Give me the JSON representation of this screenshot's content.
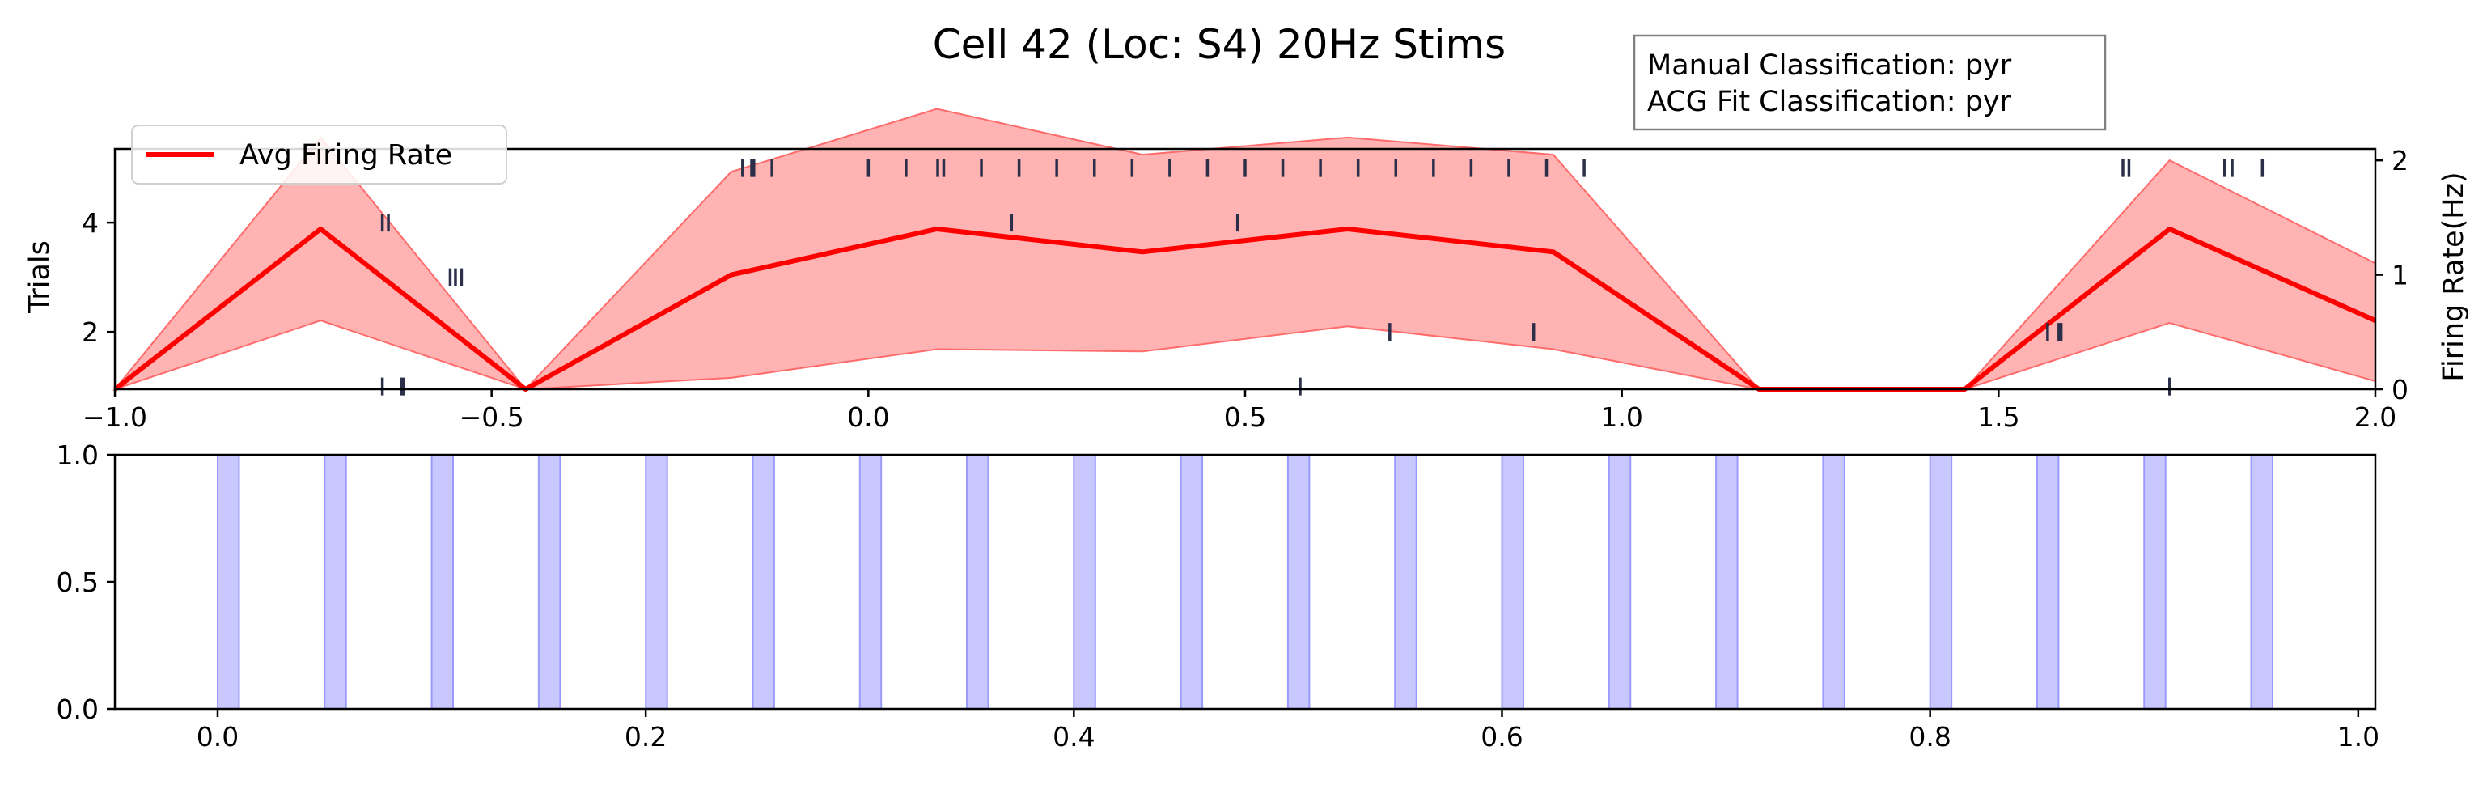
{
  "title": "Cell 42 (Loc: S4) 20Hz Stims",
  "classification_box": {
    "line1": "Manual Classification: pyr",
    "line2": "ACG Fit Classification: pyr"
  },
  "colors": {
    "rate_line": "#ff0000",
    "rate_band": "#ff9a9a",
    "spike_ticks": "#2c2f4a",
    "stim_band": "#c8c8ff",
    "stim_edge": "#9a9aff"
  },
  "chart_data": [
    {
      "type": "line",
      "panel": "top",
      "title": "Cell 42 (Loc: S4) 20Hz Stims",
      "xlim": [
        -1.0,
        2.0
      ],
      "xticks": [
        -1.0,
        -0.5,
        0.0,
        0.5,
        1.0,
        1.5,
        2.0
      ],
      "xtick_labels": [
        "−1.0",
        "−0.5",
        "0.0",
        "0.5",
        "1.0",
        "1.5",
        "2.0"
      ],
      "left_axis": {
        "label": "Trials",
        "ylim": [
          0.95,
          5.35
        ],
        "ticks": [
          2,
          4
        ],
        "tick_labels": [
          "2",
          "4"
        ]
      },
      "right_axis": {
        "label": "Firing Rate(Hz)",
        "ylim": [
          0,
          2.1
        ],
        "ticks": [
          0,
          1,
          2
        ],
        "tick_labels": [
          "0",
          "1",
          "2"
        ]
      },
      "legend": {
        "entries": [
          "Avg Firing Rate"
        ],
        "placement": "top-left"
      },
      "series": [
        {
          "name": "Avg Firing Rate",
          "axis": "right",
          "x": [
            -1.0,
            -0.727,
            -0.455,
            -0.182,
            0.091,
            0.364,
            0.636,
            0.909,
            1.182,
            1.455,
            1.727,
            2.0
          ],
          "y": [
            0.0,
            1.4,
            0.0,
            1.0,
            1.4,
            1.2,
            1.4,
            1.2,
            0.0,
            0.0,
            1.4,
            0.6
          ],
          "band_upper": [
            0.0,
            2.2,
            0.0,
            1.9,
            2.45,
            2.05,
            2.2,
            2.05,
            0.0,
            0.0,
            2.0,
            1.1
          ],
          "band_lower": [
            0.0,
            0.6,
            0.0,
            0.1,
            0.35,
            0.33,
            0.55,
            0.35,
            0.0,
            0.0,
            0.58,
            0.07
          ]
        }
      ],
      "raster": [
        {
          "trial": 1,
          "times": [
            -0.645,
            -0.62,
            -0.617,
            0.573,
            1.727
          ]
        },
        {
          "trial": 2,
          "times": [
            0.692,
            0.883,
            1.565,
            1.58,
            1.583
          ]
        },
        {
          "trial": 3,
          "times": [
            -0.555,
            -0.548,
            -0.54
          ]
        },
        {
          "trial": 4,
          "times": [
            -0.645,
            -0.637,
            0.19,
            0.49
          ]
        },
        {
          "trial": 5,
          "times": [
            -0.167,
            -0.155,
            -0.152,
            -0.128,
            0.0,
            0.05,
            0.092,
            0.1,
            0.15,
            0.2,
            0.25,
            0.3,
            0.35,
            0.4,
            0.45,
            0.5,
            0.55,
            0.6,
            0.65,
            0.7,
            0.75,
            0.8,
            0.85,
            0.9,
            0.95,
            1.665,
            1.673,
            1.8,
            1.81,
            1.85
          ]
        }
      ]
    },
    {
      "type": "bar",
      "panel": "bottom",
      "description_label": "stimulus windows",
      "xlim": [
        -0.048,
        1.008
      ],
      "ylim": [
        0.0,
        1.0
      ],
      "xticks": [
        0.0,
        0.2,
        0.4,
        0.6,
        0.8,
        1.0
      ],
      "xtick_labels": [
        "0.0",
        "0.2",
        "0.4",
        "0.6",
        "0.8",
        "1.0"
      ],
      "yticks": [
        0.0,
        0.5,
        1.0
      ],
      "ytick_labels": [
        "0.0",
        "0.5",
        "1.0"
      ],
      "stim_onsets": [
        0.0,
        0.05,
        0.1,
        0.15,
        0.2,
        0.25,
        0.3,
        0.35,
        0.4,
        0.45,
        0.5,
        0.55,
        0.6,
        0.65,
        0.7,
        0.75,
        0.8,
        0.85,
        0.9,
        0.95
      ],
      "stim_duration": 0.01
    }
  ]
}
